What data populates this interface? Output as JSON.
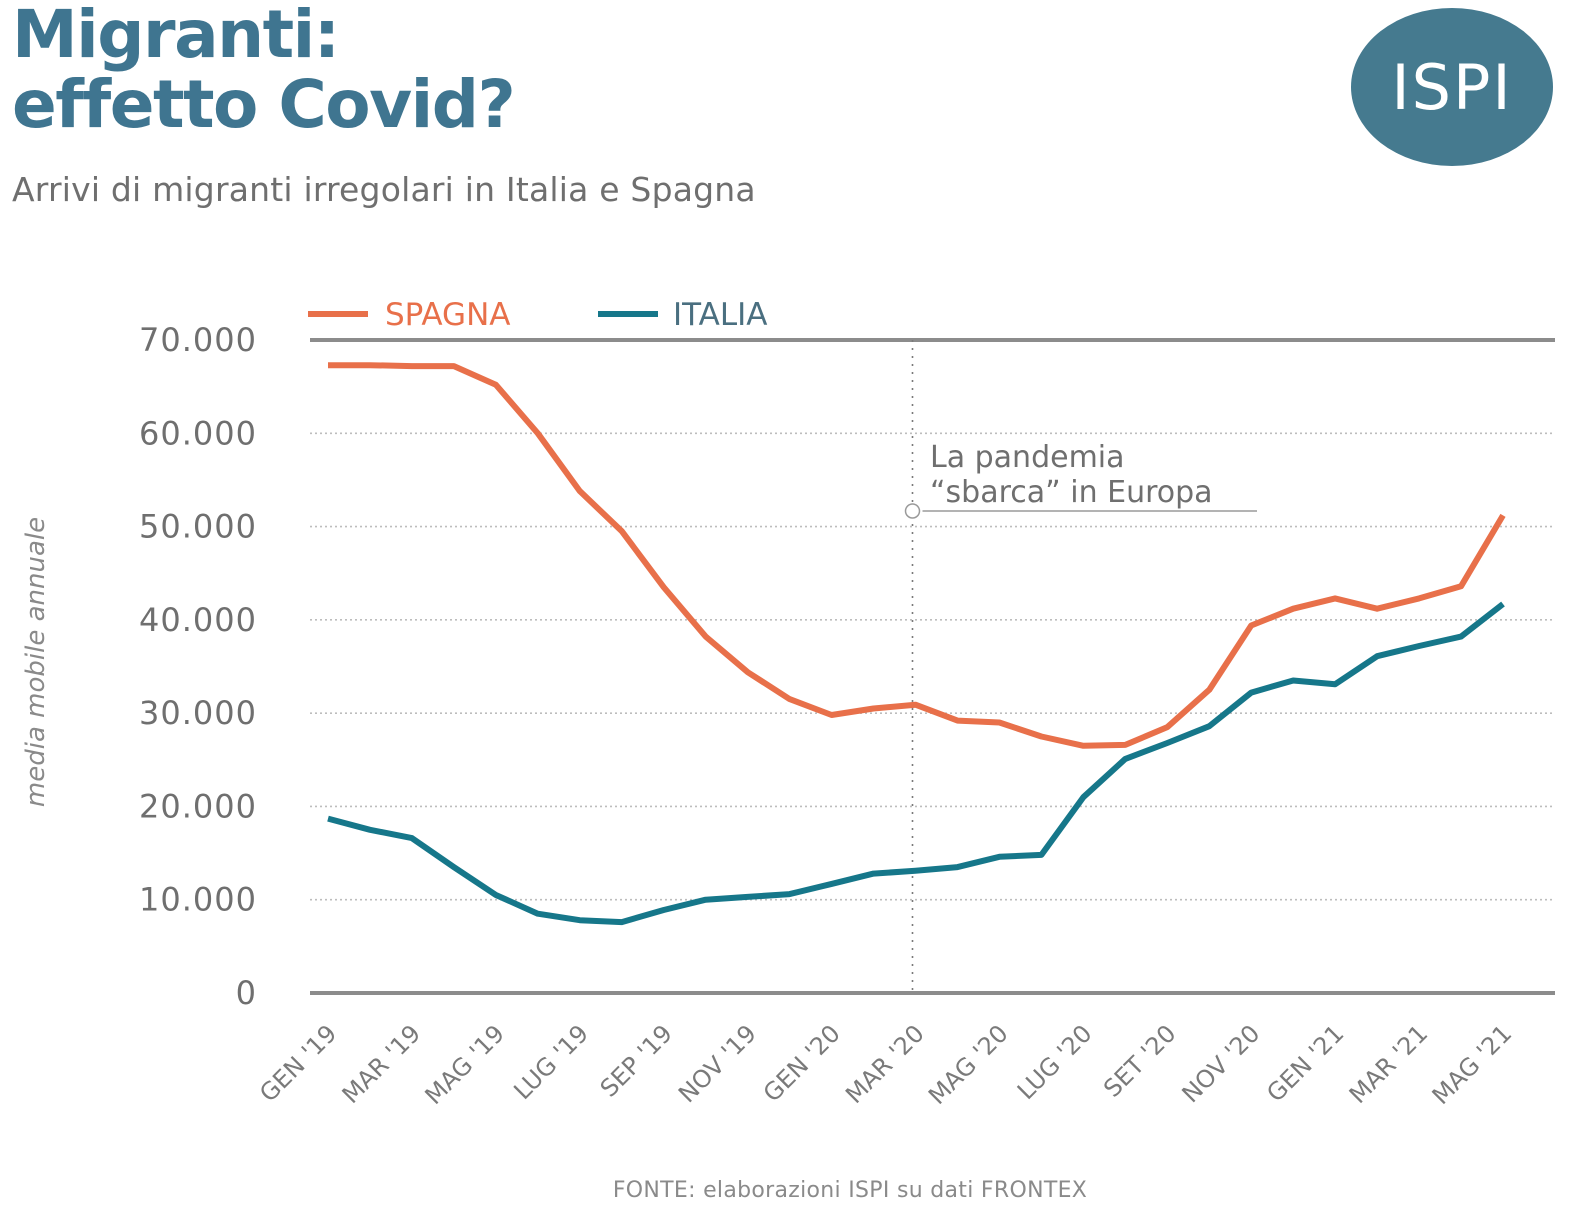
{
  "header": {
    "title_line1": "Migranti:",
    "title_line2": "effetto Covid?",
    "subtitle": "Arrivi di migranti irregolari in Italia e Spagna",
    "logo_text": "ISPI"
  },
  "footer": {
    "source": "FONTE: elaborazioni ISPI su dati FRONTEX"
  },
  "colors": {
    "title": "#3f7590",
    "spagna": "#e8704a",
    "italia": "#16778a",
    "axis": "#8c8c8c",
    "grid": "#bdbdbd",
    "text": "#6f6f6f"
  },
  "chart_data": {
    "type": "line",
    "title": "Migranti: effetto Covid?",
    "subtitle": "Arrivi di migranti irregolari in Italia e Spagna",
    "xlabel": "",
    "ylabel": "media mobile annuale",
    "ylim": [
      0,
      70000
    ],
    "yticks": [
      0,
      10000,
      20000,
      30000,
      40000,
      50000,
      60000,
      70000
    ],
    "ytick_labels": [
      "0",
      "10.000",
      "20.000",
      "30.000",
      "40.000",
      "50.000",
      "60.000",
      "70.000"
    ],
    "grid": true,
    "legend_position": "top-left",
    "x": [
      "GEN '19",
      "FEB '19",
      "MAR '19",
      "APR '19",
      "MAG '19",
      "GIU '19",
      "LUG '19",
      "AGO '19",
      "SEP '19",
      "OTT '19",
      "NOV '19",
      "DIC '19",
      "GEN '20",
      "FEB '20",
      "MAR '20",
      "APR '20",
      "MAG '20",
      "GIU '20",
      "LUG '20",
      "AGO '20",
      "SET '20",
      "OTT '20",
      "NOV '20",
      "DIC '20",
      "GEN '21",
      "FEB '21",
      "MAR '21",
      "APR '21",
      "MAG '21"
    ],
    "xtick_labels": [
      "GEN '19",
      "MAR '19",
      "MAG '19",
      "LUG '19",
      "SEP '19",
      "NOV '19",
      "GEN '20",
      "MAR '20",
      "MAG '20",
      "LUG '20",
      "SET '20",
      "NOV '20",
      "GEN '21",
      "MAR '21",
      "MAG '21"
    ],
    "series": [
      {
        "name": "SPAGNA",
        "color": "#e8704a",
        "values": [
          67300,
          67300,
          67200,
          67200,
          65200,
          60000,
          53800,
          49500,
          43500,
          38200,
          34400,
          31500,
          29800,
          30500,
          30900,
          29200,
          29000,
          27500,
          26500,
          26600,
          28500,
          32500,
          39400,
          41200,
          42300,
          41200,
          42300,
          43600,
          51200
        ]
      },
      {
        "name": "ITALIA",
        "color": "#16778a",
        "values": [
          18700,
          17500,
          16600,
          13500,
          10500,
          8500,
          7800,
          7600,
          8900,
          10000,
          10300,
          10600,
          11700,
          12800,
          13100,
          13500,
          14600,
          14800,
          21000,
          25100,
          26800,
          28600,
          32200,
          33500,
          33100,
          36100,
          37200,
          38200,
          41700
        ]
      }
    ],
    "annotations": [
      {
        "x": "MAR '20",
        "line1": "La pandemia",
        "line2": "“sbarca” in Europa",
        "style": "vertical dotted line"
      }
    ]
  }
}
